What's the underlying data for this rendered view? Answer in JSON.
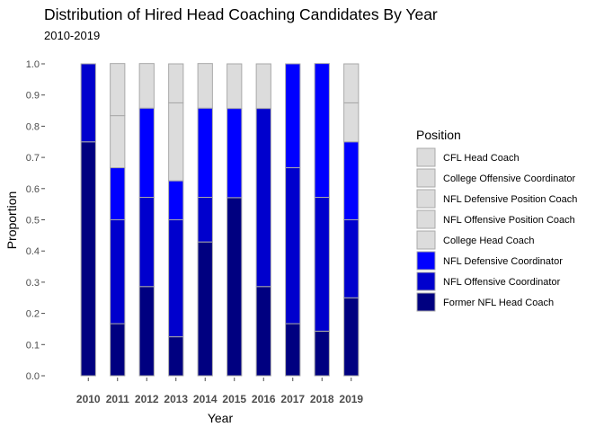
{
  "chart_data": {
    "type": "bar",
    "stacked": true,
    "title": "Distribution of Hired Head Coaching Candidates By Year",
    "subtitle": "2010-2019",
    "xlabel": "Year",
    "ylabel": "Proportion",
    "ylim": [
      0,
      1
    ],
    "yticks": [
      "0.0",
      "0.1",
      "0.2",
      "0.3",
      "0.4",
      "0.5",
      "0.6",
      "0.7",
      "0.8",
      "0.9",
      "1.0"
    ],
    "categories": [
      "2010",
      "2011",
      "2012",
      "2013",
      "2014",
      "2015",
      "2016",
      "2017",
      "2018",
      "2019"
    ],
    "legend": {
      "title": "Position",
      "placement": "right"
    },
    "series": [
      {
        "name": "Former NFL Head Coach",
        "color": "#000080",
        "values": [
          0.75,
          0.167,
          0.286,
          0.125,
          0.429,
          0.571,
          0.286,
          0.167,
          0.143,
          0.25
        ]
      },
      {
        "name": "NFL Offensive Coordinator",
        "color": "#0000cd",
        "values": [
          0.25,
          0.333,
          0.286,
          0.375,
          0.143,
          0.0,
          0.571,
          0.5,
          0.429,
          0.25
        ]
      },
      {
        "name": "NFL Defensive Coordinator",
        "color": "#0000ff",
        "values": [
          0.0,
          0.167,
          0.286,
          0.125,
          0.286,
          0.286,
          0.0,
          0.333,
          0.429,
          0.25
        ]
      },
      {
        "name": "College Head Coach",
        "color": "#dcdcdc",
        "values": [
          0.0,
          0.167,
          0.143,
          0.25,
          0.143,
          0.143,
          0.143,
          0.0,
          0.0,
          0.125
        ]
      },
      {
        "name": "NFL Offensive Position Coach",
        "color": "#dcdcdc",
        "values": [
          0.0,
          0.167,
          0.0,
          0.125,
          0.0,
          0.0,
          0.0,
          0.0,
          0.0,
          0.125
        ]
      },
      {
        "name": "NFL Defensive Position Coach",
        "color": "#dcdcdc",
        "values": [
          0,
          0,
          0,
          0,
          0,
          0,
          0,
          0,
          0,
          0
        ]
      },
      {
        "name": "College Offensive Coordinator",
        "color": "#dcdcdc",
        "values": [
          0,
          0,
          0,
          0,
          0,
          0,
          0,
          0,
          0,
          0
        ]
      },
      {
        "name": "CFL Head Coach",
        "color": "#dcdcdc",
        "values": [
          0,
          0,
          0,
          0,
          0,
          0,
          0,
          0,
          0,
          0
        ]
      }
    ],
    "legend_order": [
      "CFL Head Coach",
      "College Offensive Coordinator",
      "NFL Defensive Position Coach",
      "NFL Offensive Position Coach",
      "College Head Coach",
      "NFL Defensive Coordinator",
      "NFL Offensive Coordinator",
      "Former NFL Head Coach"
    ],
    "bar_outline_color": "#a9a9a9"
  }
}
